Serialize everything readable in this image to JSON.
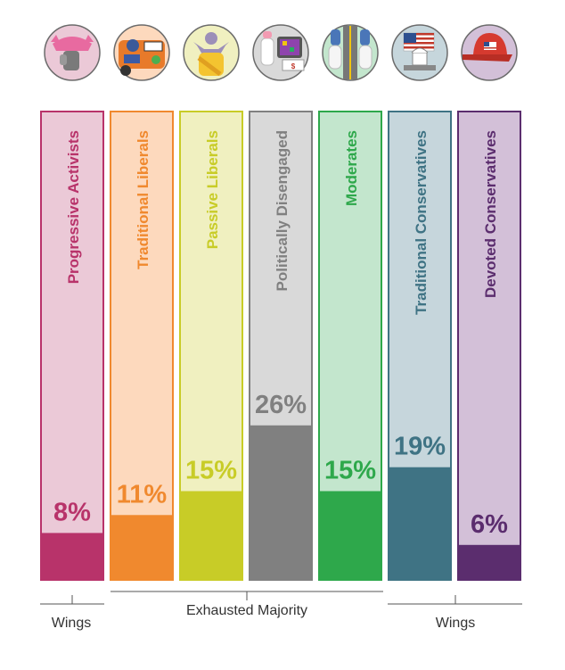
{
  "colors": {
    "bracket": "#555555",
    "label_text": "#333333"
  },
  "chart_data": {
    "type": "bar",
    "title": "",
    "xlabel": "",
    "ylabel": "",
    "ylim": [
      0,
      100
    ],
    "grid": false,
    "legend": "none",
    "categories": [
      "Progressive Activists",
      "Traditional Liberals",
      "Passive Liberals",
      "Politically Disengaged",
      "Moderates",
      "Traditional Conservatives",
      "Devoted Conservatives"
    ],
    "values": [
      8,
      11,
      15,
      26,
      15,
      19,
      6
    ],
    "value_labels": [
      "8%",
      "11%",
      "15%",
      "26%",
      "15%",
      "19%",
      "6%"
    ],
    "icons": [
      "pink-hat-raised-fist-icon",
      "car-bumper-stickers-icon",
      "shrugging-person-icon",
      "baby-bottle-tablet-icon",
      "sneakers-on-road-icon",
      "flag-over-capitol-icon",
      "red-cap-flag-icon"
    ],
    "bar_colors": [
      "#b8336a",
      "#f0892e",
      "#c8cc27",
      "#808080",
      "#2ea84b",
      "#3f7384",
      "#5b2d6e"
    ],
    "bg_colors": [
      "#ebc9d7",
      "#fdd9bd",
      "#f0f0c0",
      "#d9d9d9",
      "#c3e6cd",
      "#c6d6dc",
      "#d3c0d8"
    ],
    "label_colors": [
      "#b8336a",
      "#f0892e",
      "#c8cc27",
      "#808080",
      "#2ea84b",
      "#3f7384",
      "#5b2d6e"
    ],
    "groups": [
      {
        "label": "Wings",
        "categories": [
          "Progressive Activists"
        ]
      },
      {
        "label": "Exhausted Majority",
        "categories": [
          "Traditional Liberals",
          "Passive Liberals",
          "Politically Disengaged",
          "Moderates"
        ]
      },
      {
        "label": "Wings",
        "categories": [
          "Traditional Conservatives",
          "Devoted Conservatives"
        ]
      }
    ]
  }
}
